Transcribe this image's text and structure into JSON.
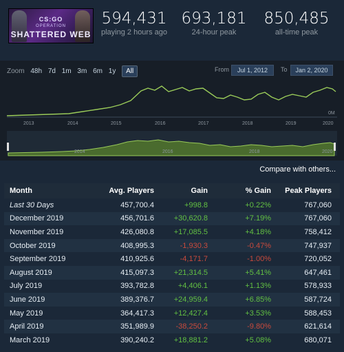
{
  "header": {
    "banner": {
      "logo": "CS:GO",
      "subtitle": "OPERATION",
      "title": "SHATTERED WEB"
    },
    "stats": [
      {
        "value": "594,431",
        "label": "playing 2 hours ago"
      },
      {
        "value": "693,181",
        "label": "24-hour peak"
      },
      {
        "value": "850,485",
        "label": "all-time peak"
      }
    ]
  },
  "chart": {
    "zoom_label": "Zoom",
    "zoom_buttons": [
      "48h",
      "7d",
      "1m",
      "3m",
      "6m",
      "1y",
      "All"
    ],
    "active_zoom": "All",
    "from_label": "From",
    "from_value": "Jul 1, 2012",
    "to_label": "To",
    "to_value": "Jan 2, 2020",
    "x_ticks": [
      "2013",
      "2014",
      "2015",
      "2016",
      "2017",
      "2018",
      "2019",
      "2020"
    ],
    "y_zero_label": "0M",
    "navigator_ticks": [
      "2014",
      "2016",
      "2018",
      "2020"
    ],
    "line_color": "#9acb59"
  },
  "compare_label": "Compare with others...",
  "table": {
    "headers": [
      "Month",
      "Avg. Players",
      "Gain",
      "% Gain",
      "Peak Players"
    ],
    "rows": [
      {
        "month": "Last 30 Days",
        "avg": "457,700.4",
        "gain": "+998.8",
        "pct": "+0.22%",
        "peak": "767,060",
        "dir": "pos"
      },
      {
        "month": "December 2019",
        "avg": "456,701.6",
        "gain": "+30,620.8",
        "pct": "+7.19%",
        "peak": "767,060",
        "dir": "pos"
      },
      {
        "month": "November 2019",
        "avg": "426,080.8",
        "gain": "+17,085.5",
        "pct": "+4.18%",
        "peak": "758,412",
        "dir": "pos"
      },
      {
        "month": "October 2019",
        "avg": "408,995.3",
        "gain": "-1,930.3",
        "pct": "-0.47%",
        "peak": "747,937",
        "dir": "neg"
      },
      {
        "month": "September 2019",
        "avg": "410,925.6",
        "gain": "-4,171.7",
        "pct": "-1.00%",
        "peak": "720,052",
        "dir": "neg"
      },
      {
        "month": "August 2019",
        "avg": "415,097.3",
        "gain": "+21,314.5",
        "pct": "+5.41%",
        "peak": "647,461",
        "dir": "pos"
      },
      {
        "month": "July 2019",
        "avg": "393,782.8",
        "gain": "+4,406.1",
        "pct": "+1.13%",
        "peak": "578,933",
        "dir": "pos"
      },
      {
        "month": "June 2019",
        "avg": "389,376.7",
        "gain": "+24,959.4",
        "pct": "+6.85%",
        "peak": "587,724",
        "dir": "pos"
      },
      {
        "month": "May 2019",
        "avg": "364,417.3",
        "gain": "+12,427.4",
        "pct": "+3.53%",
        "peak": "588,453",
        "dir": "pos"
      },
      {
        "month": "April 2019",
        "avg": "351,989.9",
        "gain": "-38,250.2",
        "pct": "-9.80%",
        "peak": "621,614",
        "dir": "neg"
      },
      {
        "month": "March 2019",
        "avg": "390,240.2",
        "gain": "+18,881.2",
        "pct": "+5.08%",
        "peak": "680,071",
        "dir": "pos"
      }
    ]
  }
}
